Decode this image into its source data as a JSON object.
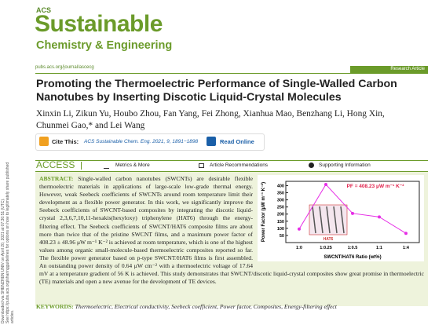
{
  "margin_note": [
    "Downloaded via SHENZHEN UNIV on April 20, 2021 at 07:30:51 (UTC).",
    "See https://pubs.acs.org/sharingguidelines for options on how to legitimately share published articles."
  ],
  "header": {
    "logo_small": "ACS",
    "logo_main": "Sustainable",
    "logo_sub": "Chemistry & Engineering",
    "url": "pubs.acs.org/journal/ascecg",
    "article_type": "Research Article"
  },
  "title": "Promoting the Thermoelectric Performance of Single-Walled Carbon Nanotubes by Inserting Discotic Liquid-Crystal Molecules",
  "authors": "Xinxin Li, Zikun Yu, Houbo Zhou, Fan Yang, Fei Zhong, Xianhua Mao, Benzhang Li, Hong Xin, Chunmei Gao,* and Lei Wang",
  "cite": {
    "label": "Cite This:",
    "ref": "ACS Sustainable Chem. Eng. 2021, 9, 1891−1898",
    "read": "Read Online"
  },
  "access": {
    "label": "ACCESS",
    "links": [
      "Metrics & More",
      "Article Recommendations",
      "Supporting Information"
    ]
  },
  "abstract": {
    "label": "ABSTRACT:",
    "text": "Single-walled carbon nanotubes (SWCNTs) are desirable flexible thermoelectric materials in applications of large-scale low-grade thermal energy. However, weak Seebeck coefficients of SWCNTs around room temperature limit their development as a flexible power generator. In this work, we significantly improve the Seebeck coefficients of SWCNT-based composites by integrating the discotic liquid-crystal 2,3,6,7,10,11-hexakis(hexyloxy) triphenylene (HAT6) through the energy-filtering effect. The Seebeck coefficients of SWCNT/HAT6 composite films are about more than twice that of the pristine SWCNT films, and a maximum power factor of 408.23 ± 48.96 μW m⁻¹ K⁻² is achieved at room temperature, which is one of the highest values among organic small-molecule-based thermoelectric composites reported so far. The flexible power generator based on p-type SWCNT/HAT6 films is first assembled. An outstanding power density of 0.64 μW cm⁻² with a thermoelectric voltage of 17.64 mV at a temperature gradient of 56 K is achieved. This study demonstrates that SWCNT/discotic liquid-crystal composites show great promise in thermoelectric (TE) materials and open a new avenue for the development of TE devices."
  },
  "chart_data": {
    "type": "line",
    "annotation": "PF = 408.23 μW m⁻¹ K⁻²",
    "inset_label": "HAT6",
    "y_label": "Power Factor (μW m⁻¹ K⁻²)",
    "x_label": "SWCNT/HAT6 Ratio (wt%)",
    "categories": [
      "1:0",
      "1:0.25",
      "1:0.5",
      "1:1",
      "1:4"
    ],
    "values": [
      95,
      408.23,
      205,
      180,
      65
    ],
    "color": "#e62ee6",
    "ylim": [
      0,
      430
    ],
    "yticks": [
      50,
      100,
      150,
      200,
      250,
      300,
      350,
      400
    ]
  },
  "keywords": {
    "label": "KEYWORDS:",
    "text": "Thermoelectric, Electrical conductivity, Seebeck coefficient, Power factor, Composites, Energy-filtering effect"
  }
}
